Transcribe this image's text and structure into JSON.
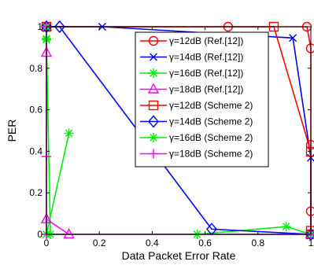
{
  "chart_data": {
    "type": "line",
    "xlabel": "Data Packet Error Rate",
    "ylabel": "PER",
    "xlim": [
      0,
      1
    ],
    "ylim": [
      0,
      1
    ],
    "xticks": [
      "0",
      "0.2",
      "0.4",
      "0.6",
      "0.8",
      "1"
    ],
    "yticks": [
      "0",
      "0.2",
      "0.4",
      "0.6",
      "0.8",
      "1"
    ],
    "grid": false,
    "legend_position": "top-right",
    "series": [
      {
        "name": "γ=12dB (Ref.[12])",
        "color": "#ff0000",
        "marker": "circle",
        "x": [
          0.0,
          0.687,
          0.985,
          1.0,
          1.0,
          1.0,
          1.0
        ],
        "y": [
          1.0,
          1.0,
          1.0,
          0.896,
          0.431,
          0.111,
          0.0
        ]
      },
      {
        "name": "γ=14dB (Ref.[12])",
        "color": "#0000ff",
        "marker": "x",
        "x": [
          0.0,
          0.211,
          0.932,
          1.0,
          1.0
        ],
        "y": [
          1.0,
          1.0,
          0.946,
          0.369,
          0.0
        ]
      },
      {
        "name": "γ=16dB (Ref.[12])",
        "color": "#00ee00",
        "marker": "star",
        "x": [
          0.0,
          0.0,
          0.0,
          0.0,
          0.015,
          0.57,
          0.907,
          1.0
        ],
        "y": [
          1.0,
          0.991,
          0.943,
          0.938,
          0.0,
          0.0,
          0.037,
          0.0
        ]
      },
      {
        "name": "γ=18dB (Ref.[12])",
        "color": "#ff00ff",
        "marker": "triangle",
        "x": [
          0.0,
          0.0,
          0.0,
          0.085,
          1.0
        ],
        "y": [
          1.0,
          0.875,
          0.073,
          0.0,
          0.0
        ]
      },
      {
        "name": "γ=12dB (Scheme 2)",
        "color": "#ff0000",
        "marker": "square",
        "x": [
          0.0,
          0.86,
          1.0,
          1.0,
          1.0
        ],
        "y": [
          1.0,
          1.0,
          0.398,
          0.017,
          0.0
        ]
      },
      {
        "name": "γ=14dB (Scheme 2)",
        "color": "#0000ff",
        "marker": "diamond",
        "x": [
          0.0,
          0.05,
          0.625,
          1.0
        ],
        "y": [
          1.0,
          1.0,
          0.025,
          0.0
        ]
      },
      {
        "name": "γ=16dB (Scheme 2)",
        "color": "#00ee00",
        "marker": "star",
        "x": [
          0.0,
          0.0,
          0.0,
          0.085,
          0.0,
          1.0
        ],
        "y": [
          1.0,
          0.938,
          0.0,
          0.487,
          0.0,
          0.0
        ]
      },
      {
        "name": "γ=18dB (Scheme 2)",
        "color": "#ff00ff",
        "marker": "plus",
        "x": [
          0.0,
          0.0,
          0.0,
          1.0
        ],
        "y": [
          1.0,
          0.375,
          0.0,
          0.0
        ]
      }
    ]
  }
}
